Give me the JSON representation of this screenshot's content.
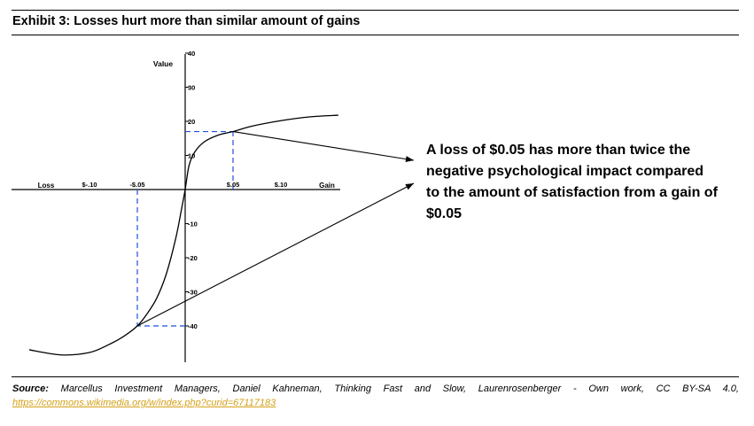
{
  "header": {
    "title": "Exhibit 3: Losses hurt more than similar amount of gains"
  },
  "chart_data": {
    "type": "line",
    "title": "",
    "ylabel": "Value",
    "x_left_label": "Loss",
    "x_right_label": "Gain",
    "x_ticks": [
      {
        "value": -0.1,
        "label": "$-.10"
      },
      {
        "value": -0.05,
        "label": "-$.05"
      },
      {
        "value": 0.05,
        "label": "$.05"
      },
      {
        "value": 0.1,
        "label": "$.10"
      }
    ],
    "y_ticks": [
      {
        "value": 40,
        "label": "40"
      },
      {
        "value": 30,
        "label": "30"
      },
      {
        "value": 20,
        "label": "20"
      },
      {
        "value": 10,
        "label": "10"
      },
      {
        "value": -10,
        "label": "-10"
      },
      {
        "value": -20,
        "label": "-20"
      },
      {
        "value": -30,
        "label": "-30"
      },
      {
        "value": -40,
        "label": "-40"
      }
    ],
    "xlim": [
      -0.18,
      0.16
    ],
    "ylim": [
      -52,
      40
    ],
    "series": [
      {
        "values": [
          {
            "x": -0.163,
            "y": -47
          },
          {
            "x": -0.13,
            "y": -48.5
          },
          {
            "x": -0.1,
            "y": -47.8
          },
          {
            "x": -0.08,
            "y": -45.5
          },
          {
            "x": -0.065,
            "y": -43.2
          },
          {
            "x": -0.05,
            "y": -40
          },
          {
            "x": -0.04,
            "y": -36.5
          },
          {
            "x": -0.03,
            "y": -32
          },
          {
            "x": -0.02,
            "y": -25
          },
          {
            "x": -0.01,
            "y": -14.5
          },
          {
            "x": -0.004,
            "y": -6
          },
          {
            "x": 0,
            "y": 0
          },
          {
            "x": 0.004,
            "y": 7
          },
          {
            "x": 0.01,
            "y": 11
          },
          {
            "x": 0.02,
            "y": 14
          },
          {
            "x": 0.035,
            "y": 16
          },
          {
            "x": 0.05,
            "y": 17
          },
          {
            "x": 0.07,
            "y": 18.6
          },
          {
            "x": 0.1,
            "y": 20.2
          },
          {
            "x": 0.13,
            "y": 21.3
          },
          {
            "x": 0.16,
            "y": 21.8
          }
        ]
      }
    ],
    "reference_points": [
      {
        "x": 0.05,
        "y": 17
      },
      {
        "x": -0.05,
        "y": -40
      }
    ],
    "grid": false,
    "axis_color": "#000000",
    "curve_color": "#000000",
    "guide_color": "#1f4fe0"
  },
  "annotation": {
    "text": "A loss of $0.05 has more than twice the negative psychological impact compared to the amount of satisfaction from a gain of $0.05"
  },
  "source": {
    "label": "Source:",
    "text": "Marcellus Investment Managers, Daniel Kahneman, Thinking Fast and Slow, Laurenrosenberger - Own work, CC BY-SA 4.0,",
    "link": "https://commons.wikimedia.org/w/index.php?curid=67117183",
    "link_color": "#d4a017"
  }
}
